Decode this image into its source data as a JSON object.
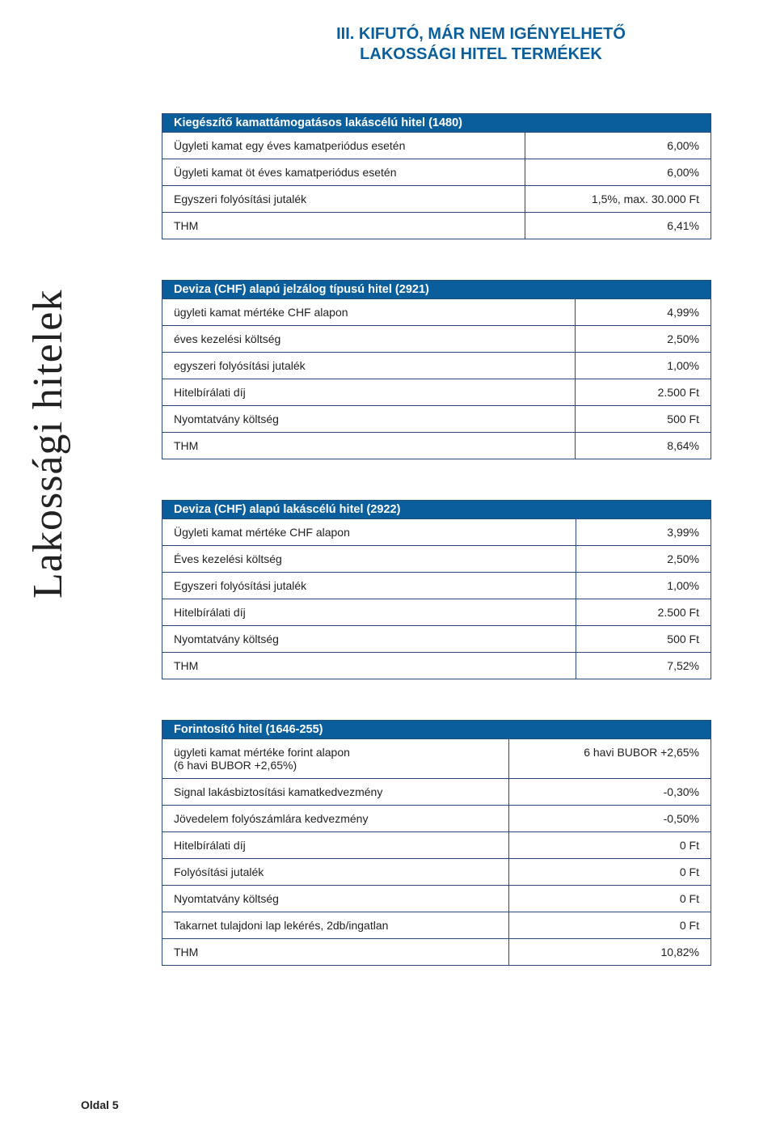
{
  "title_line1": "III. KIFUTÓ, MÁR NEM IGÉNYELHETŐ",
  "title_line2": "LAKOSSÁGI HITEL TERMÉKEK",
  "side_label": "Lakossági hitelek",
  "tables": [
    {
      "header": "Kiegészítő kamattámogatásos lakáscélú hitel (1480)",
      "rows": [
        {
          "label": "Ügyleti kamat egy éves kamatperiódus esetén",
          "value": "6,00%"
        },
        {
          "label": "Ügyleti kamat öt éves kamatperiódus esetén",
          "value": "6,00%"
        },
        {
          "label": "Egyszeri folyósítási jutalék",
          "value": "1,5%, max. 30.000 Ft"
        },
        {
          "label": "THM",
          "value": "6,41%"
        }
      ]
    },
    {
      "header": "Deviza (CHF) alapú jelzálog típusú hitel (2921)",
      "rows": [
        {
          "label": "ügyleti kamat mértéke CHF alapon",
          "value": "4,99%"
        },
        {
          "label": "éves kezelési költség",
          "value": "2,50%"
        },
        {
          "label": "egyszeri folyósítási jutalék",
          "value": "1,00%"
        },
        {
          "label": "Hitelbírálati díj",
          "value": "2.500 Ft"
        },
        {
          "label": "Nyomtatvány költség",
          "value": "500 Ft"
        },
        {
          "label": "THM",
          "value": "8,64%"
        }
      ]
    },
    {
      "header": "Deviza (CHF) alapú lakáscélú hitel (2922)",
      "rows": [
        {
          "label": "Ügyleti kamat mértéke CHF alapon",
          "value": "3,99%"
        },
        {
          "label": "Éves kezelési költség",
          "value": "2,50%"
        },
        {
          "label": "Egyszeri folyósítási jutalék",
          "value": "1,00%"
        },
        {
          "label": "Hitelbírálati díj",
          "value": "2.500 Ft"
        },
        {
          "label": "Nyomtatvány költség",
          "value": "500 Ft"
        },
        {
          "label": "THM",
          "value": "7,52%"
        }
      ]
    },
    {
      "header": "Forintosító hitel (1646-255)",
      "rows": [
        {
          "label": "ügyleti kamat mértéke forint alapon\n(6 havi BUBOR +2,65%)",
          "value": "6 havi BUBOR +2,65%"
        },
        {
          "label": "Signal lakásbiztosítási kamatkedvezmény",
          "value": "-0,30%"
        },
        {
          "label": "Jövedelem folyószámlára kedvezmény",
          "value": "-0,50%"
        },
        {
          "label": "Hitelbírálati díj",
          "value": "0 Ft"
        },
        {
          "label": "Folyósítási jutalék",
          "value": "0 Ft"
        },
        {
          "label": "Nyomtatvány költség",
          "value": "0 Ft"
        },
        {
          "label": "Takarnet tulajdoni lap lekérés,  2db/ingatlan",
          "value": "0 Ft"
        },
        {
          "label": "THM",
          "value": "10,82%"
        }
      ]
    }
  ],
  "footer": "Oldal 5",
  "colors": {
    "header_bg": "#0b5e9c",
    "header_text": "#ffffff",
    "border": "#2a4a7a",
    "title": "#0b5e9c",
    "text": "#222222",
    "background": "#ffffff"
  },
  "typography": {
    "title_fontsize": 20,
    "side_label_fontfamily": "Georgia",
    "side_label_fontsize": 52,
    "body_fontfamily": "Verdana",
    "cell_fontsize": 14
  }
}
